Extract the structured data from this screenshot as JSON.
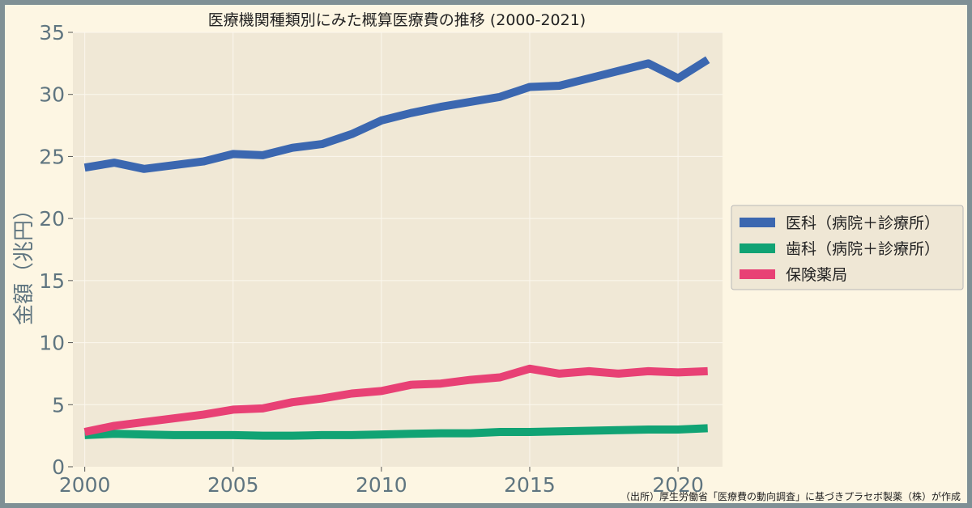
{
  "chart_data": {
    "type": "line",
    "title": "医療機関種類別にみた概算医療費の推移 (2000-2021)",
    "xlabel": "",
    "ylabel": "金額（兆円）",
    "x": [
      2000,
      2001,
      2002,
      2003,
      2004,
      2005,
      2006,
      2007,
      2008,
      2009,
      2010,
      2011,
      2012,
      2013,
      2014,
      2015,
      2016,
      2017,
      2018,
      2019,
      2020,
      2021
    ],
    "xlim": [
      1999.6,
      2021.5
    ],
    "ylim": [
      0,
      35
    ],
    "xticks": [
      "2000",
      "2005",
      "2010",
      "2015",
      "2020"
    ],
    "yticks": [
      "0",
      "5",
      "10",
      "15",
      "20",
      "25",
      "30",
      "35"
    ],
    "grid": true,
    "legend_position": "right",
    "series": [
      {
        "name": "医科（病院＋診療所）",
        "color": "#3b67b0",
        "values": [
          24.1,
          24.5,
          24.0,
          24.3,
          24.6,
          25.2,
          25.1,
          25.7,
          26.0,
          26.8,
          27.9,
          28.5,
          29.0,
          29.4,
          29.8,
          30.6,
          30.7,
          31.3,
          31.9,
          32.5,
          31.3,
          32.8
        ]
      },
      {
        "name": "歯科（病院＋診療所）",
        "color": "#11a374",
        "values": [
          2.55,
          2.65,
          2.6,
          2.55,
          2.55,
          2.55,
          2.5,
          2.5,
          2.55,
          2.55,
          2.6,
          2.65,
          2.7,
          2.7,
          2.8,
          2.8,
          2.85,
          2.9,
          2.95,
          3.0,
          3.0,
          3.1
        ]
      },
      {
        "name": "保険薬局",
        "color": "#e84175",
        "values": [
          2.8,
          3.3,
          3.6,
          3.9,
          4.2,
          4.6,
          4.7,
          5.2,
          5.5,
          5.9,
          6.1,
          6.6,
          6.7,
          7.0,
          7.2,
          7.9,
          7.5,
          7.7,
          7.5,
          7.7,
          7.6,
          7.7
        ]
      }
    ],
    "source_note": "（出所）厚生労働省「医療費の動向調査」に基づきプラセボ製薬（株）が作成"
  }
}
